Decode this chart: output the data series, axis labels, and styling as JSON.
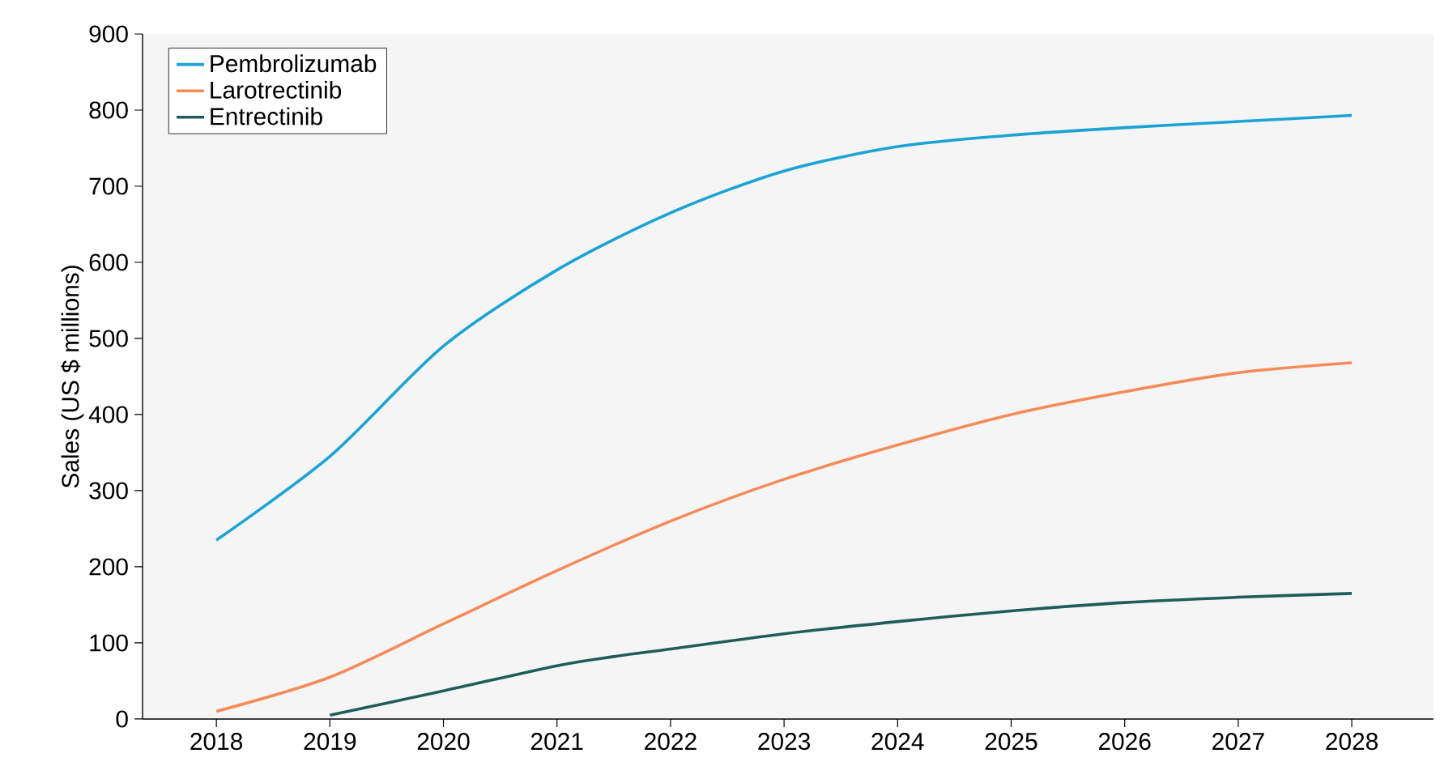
{
  "chart_data": {
    "type": "line",
    "ylabel": "Sales (US $ millions)",
    "xlim": [
      2017.35,
      2028.72
    ],
    "ylim": [
      0,
      900
    ],
    "xticks": [
      2018,
      2019,
      2020,
      2021,
      2022,
      2023,
      2024,
      2025,
      2026,
      2027,
      2028
    ],
    "yticks": [
      0,
      100,
      200,
      300,
      400,
      500,
      600,
      700,
      800,
      900
    ],
    "series": [
      {
        "name": "Pembrolizumab",
        "color": "#1ba3d6",
        "x": [
          2018,
          2019,
          2020,
          2021,
          2022,
          2023,
          2024,
          2025,
          2026,
          2027,
          2028
        ],
        "values": [
          235,
          345,
          490,
          590,
          665,
          720,
          752,
          767,
          777,
          785,
          793
        ]
      },
      {
        "name": "Larotrectinib",
        "color": "#f68b5a",
        "x": [
          2018,
          2019,
          2020,
          2021,
          2022,
          2023,
          2024,
          2025,
          2026,
          2027,
          2028
        ],
        "values": [
          10,
          55,
          125,
          195,
          260,
          315,
          360,
          400,
          430,
          455,
          468
        ]
      },
      {
        "name": "Entrectinib",
        "color": "#1e5e56",
        "x": [
          2019,
          2020,
          2021,
          2021.5,
          2022,
          2023,
          2024,
          2025,
          2026,
          2027,
          2028
        ],
        "values": [
          5,
          37,
          70,
          82,
          92,
          112,
          128,
          142,
          153,
          160,
          165
        ]
      }
    ],
    "legend": "top left",
    "grid": false,
    "marker": "none",
    "line_style": "solid"
  }
}
